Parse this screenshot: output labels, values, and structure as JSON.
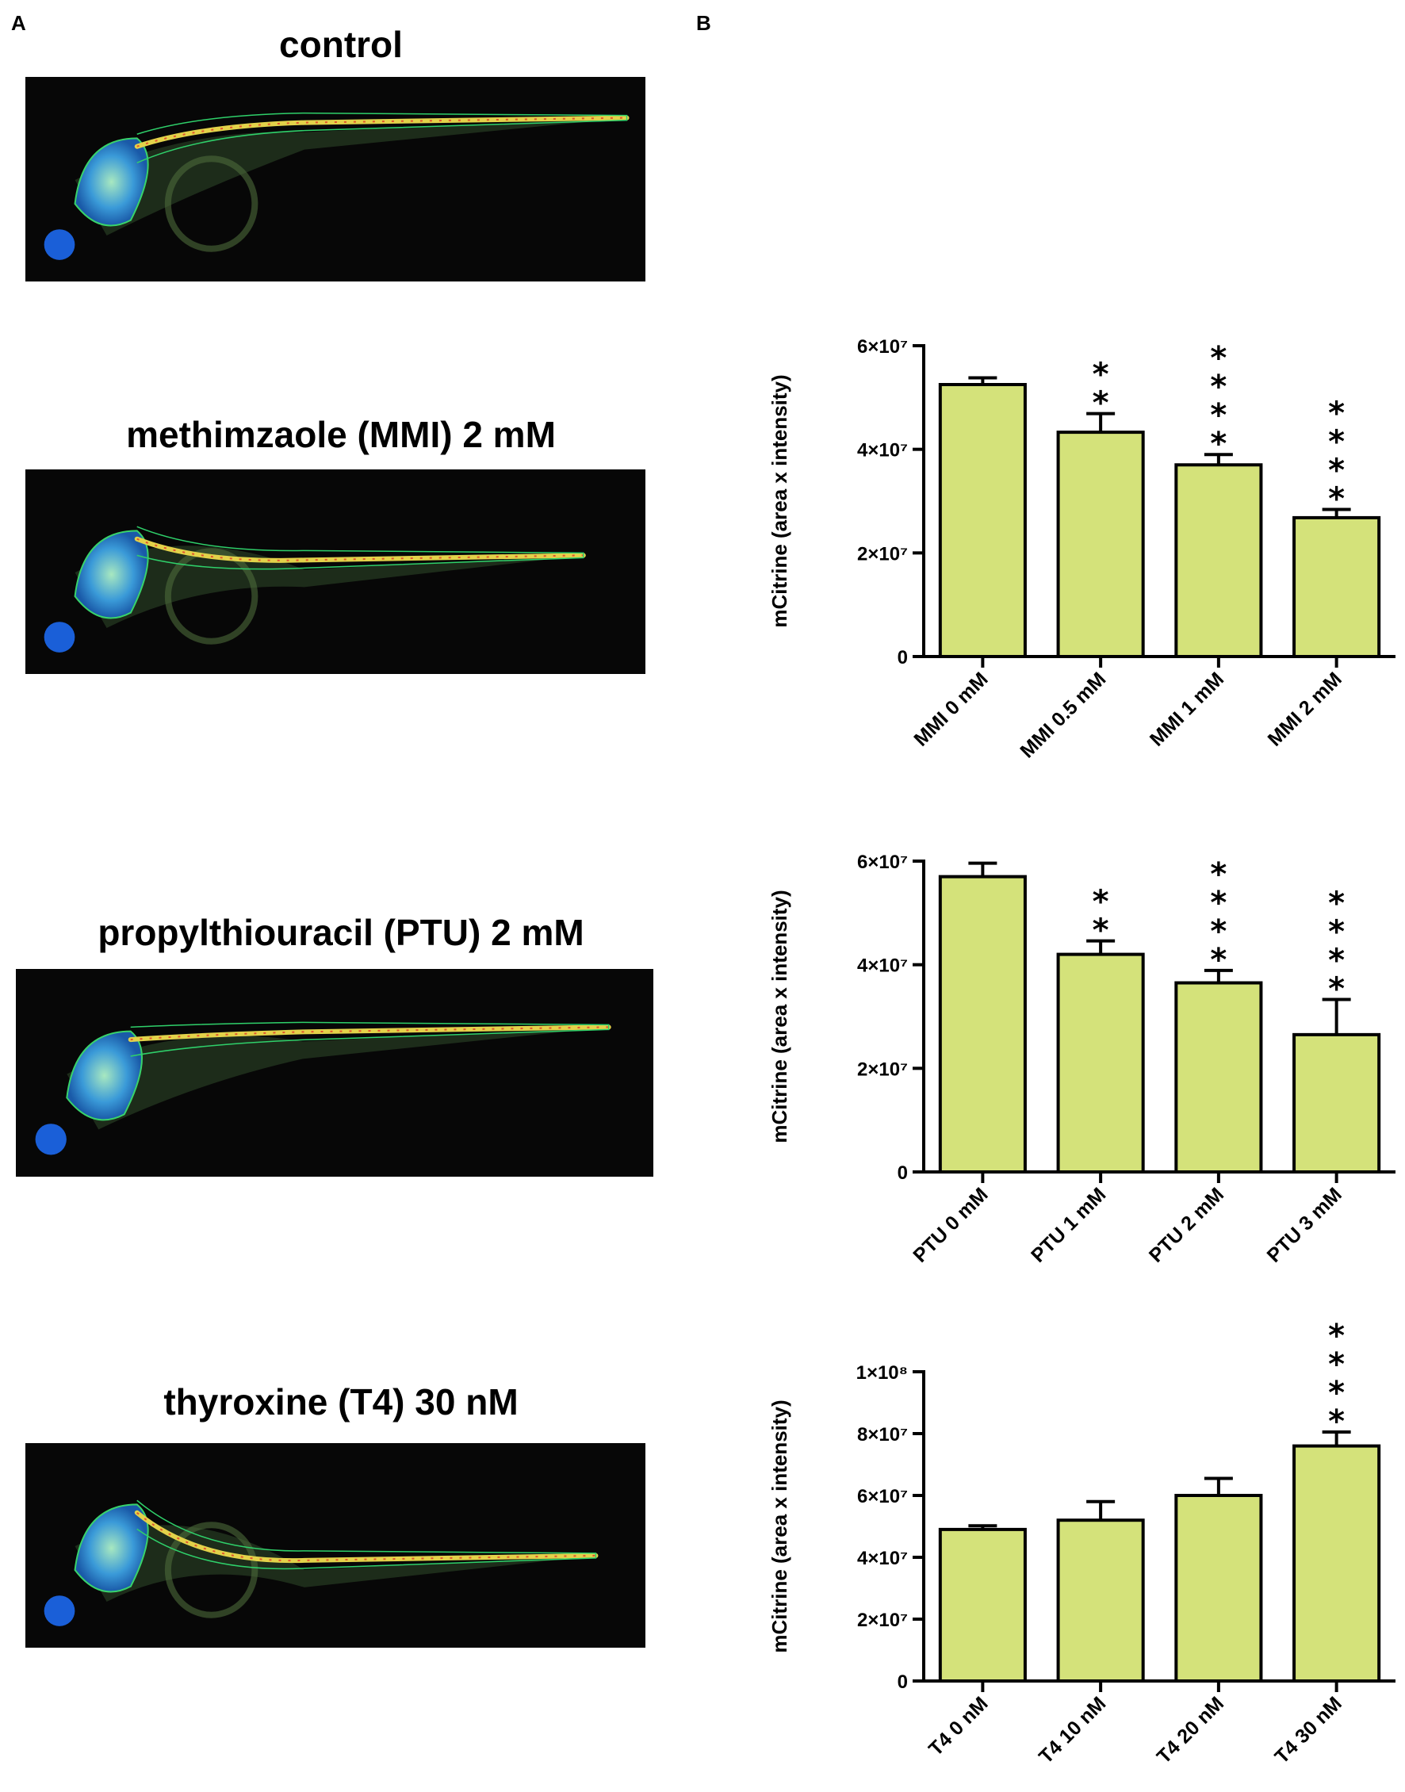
{
  "panel_a": {
    "letter": "A",
    "images": [
      {
        "title": "control"
      },
      {
        "title": "methimzaole (MMI) 2 mM"
      },
      {
        "title": "propylthiouracil (PTU) 2 mM"
      },
      {
        "title": "thyroxine (T4) 30 nM"
      }
    ]
  },
  "panel_b": {
    "letter": "B"
  },
  "colors": {
    "bar_fill": "#d4e27a",
    "bar_stroke": "#000000"
  },
  "chart_data": [
    {
      "type": "bar",
      "ylabel": "mCitrine (area x intensity)",
      "ylim": [
        0,
        60000000
      ],
      "yticks": [
        {
          "value": 0,
          "label": "0"
        },
        {
          "value": 20000000,
          "label": "2×10⁷"
        },
        {
          "value": 40000000,
          "label": "4×10⁷"
        },
        {
          "value": 60000000,
          "label": "6×10⁷"
        }
      ],
      "categories": [
        "MMI 0 mM",
        "MMI 0.5 mM",
        "MMI 1 mM",
        "MMI 2 mM"
      ],
      "values": [
        52500000,
        43300000,
        37000000,
        26800000
      ],
      "errors": [
        1300000,
        3600000,
        2000000,
        1600000
      ],
      "significance": [
        "",
        "**",
        "****",
        "****"
      ]
    },
    {
      "type": "bar",
      "ylabel": "mCitrine (area x intensity)",
      "ylim": [
        0,
        60000000
      ],
      "yticks": [
        {
          "value": 0,
          "label": "0"
        },
        {
          "value": 20000000,
          "label": "2×10⁷"
        },
        {
          "value": 40000000,
          "label": "4×10⁷"
        },
        {
          "value": 60000000,
          "label": "6×10⁷"
        }
      ],
      "categories": [
        "PTU 0 mM",
        "PTU 1 mM",
        "PTU 2 mM",
        "PTU 3 mM"
      ],
      "values": [
        57000000,
        42000000,
        36500000,
        26500000
      ],
      "errors": [
        2600000,
        2600000,
        2400000,
        6800000
      ],
      "significance": [
        "",
        "**",
        "****",
        "****"
      ]
    },
    {
      "type": "bar",
      "ylabel": "mCitrine (area x intensity)",
      "ylim": [
        0,
        100000000
      ],
      "yticks": [
        {
          "value": 0,
          "label": "0"
        },
        {
          "value": 20000000,
          "label": "2×10⁷"
        },
        {
          "value": 40000000,
          "label": "4×10⁷"
        },
        {
          "value": 60000000,
          "label": "6×10⁷"
        },
        {
          "value": 80000000,
          "label": "8×10⁷"
        },
        {
          "value": 100000000,
          "label": "1×10⁸"
        }
      ],
      "categories": [
        "T4 0 nM",
        "T4 10 nM",
        "T4 20 nM",
        "T4 30 nM"
      ],
      "values": [
        49000000,
        52000000,
        60000000,
        76000000
      ],
      "errors": [
        1200000,
        6000000,
        5500000,
        4500000
      ],
      "significance": [
        "",
        "",
        "",
        "****"
      ]
    }
  ]
}
